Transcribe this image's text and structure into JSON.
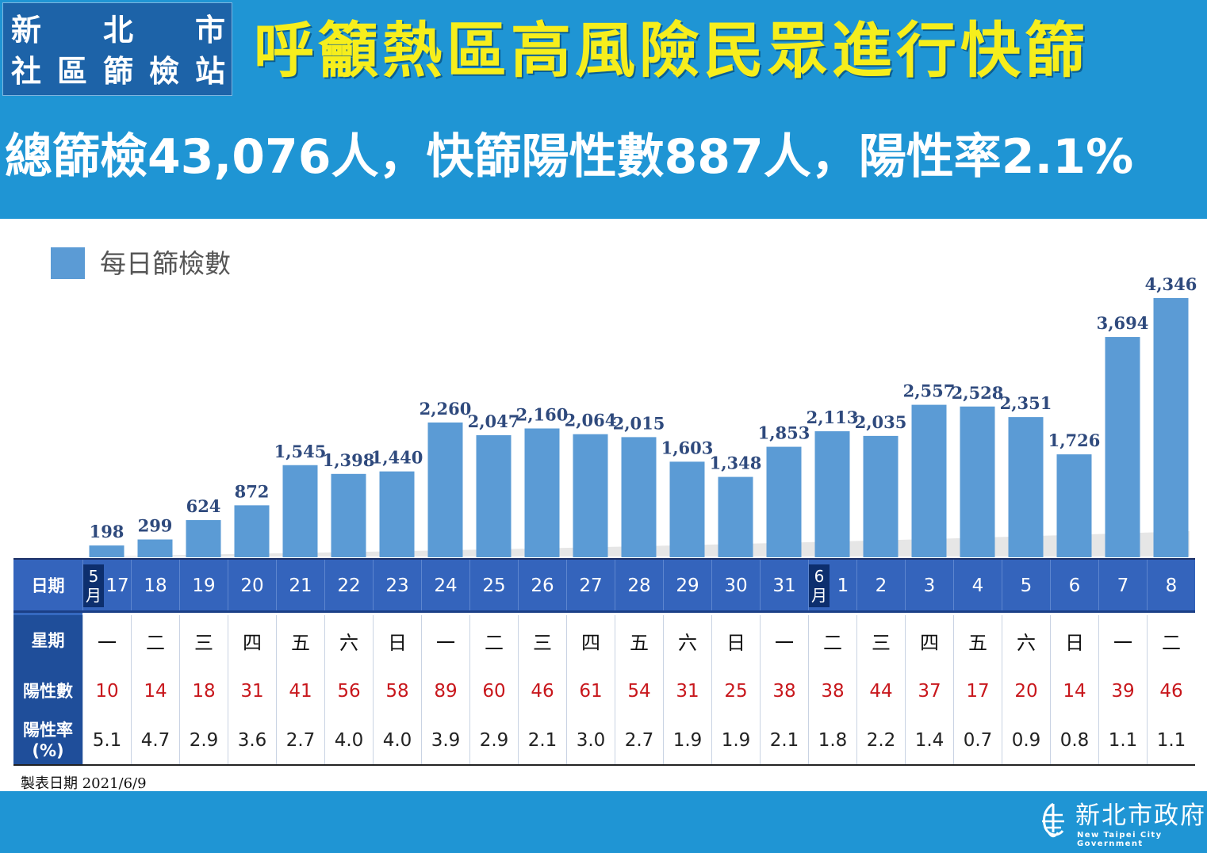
{
  "header": {
    "badge_line1": [
      "新",
      "北",
      "市"
    ],
    "badge_line2": [
      "社",
      "區",
      "篩",
      "檢",
      "站"
    ],
    "title": "呼籲熱區高風險民眾進行快篩",
    "summary": "總篩檢43,076人，快篩陽性數887人，陽性率2.1%"
  },
  "legend": {
    "label": "每日篩檢數",
    "color": "#5b9bd5"
  },
  "chart_data": {
    "type": "bar",
    "categories": [
      "5/17",
      "5/18",
      "5/19",
      "5/20",
      "5/21",
      "5/22",
      "5/23",
      "5/24",
      "5/25",
      "5/26",
      "5/27",
      "5/28",
      "5/29",
      "5/30",
      "5/31",
      "6/1",
      "6/2",
      "6/3",
      "6/4",
      "6/5",
      "6/6",
      "6/7",
      "6/8"
    ],
    "series": [
      {
        "name": "每日篩檢數",
        "values": [
          198,
          299,
          624,
          872,
          1545,
          1398,
          1440,
          2260,
          2047,
          2160,
          2064,
          2015,
          1603,
          1348,
          1853,
          2113,
          2035,
          2557,
          2528,
          2351,
          1726,
          3694,
          4346
        ],
        "labels": [
          "198",
          "299",
          "624",
          "872",
          "1,545",
          "1,398",
          "1,440",
          "2,260",
          "2,047",
          "2,160",
          "2,064",
          "2,015",
          "1,603",
          "1,348",
          "1,853",
          "2,113",
          "2,035",
          "2,557",
          "2,528",
          "2,351",
          "1,726",
          "3,694",
          "4,346"
        ]
      }
    ],
    "ylim": [
      0,
      4500
    ],
    "grid": false,
    "legend_position": "top-left",
    "bar_color": "#5b9bd5",
    "label_color": "#2f4a7d"
  },
  "table": {
    "headers": {
      "date": "日期",
      "weekday": "星期",
      "positives": "陽性數",
      "rate": "陽性率\n(%)"
    },
    "month_tags": [
      {
        "index": 0,
        "text": "5\n月"
      },
      {
        "index": 15,
        "text": "6\n月"
      }
    ],
    "days": [
      "17",
      "18",
      "19",
      "20",
      "21",
      "22",
      "23",
      "24",
      "25",
      "26",
      "27",
      "28",
      "29",
      "30",
      "31",
      "1",
      "2",
      "3",
      "4",
      "5",
      "6",
      "7",
      "8"
    ],
    "weekdays": [
      "一",
      "二",
      "三",
      "四",
      "五",
      "六",
      "日",
      "一",
      "二",
      "三",
      "四",
      "五",
      "六",
      "日",
      "一",
      "二",
      "三",
      "四",
      "五",
      "六",
      "日",
      "一",
      "二"
    ],
    "positives": [
      "10",
      "14",
      "18",
      "31",
      "41",
      "56",
      "58",
      "89",
      "60",
      "46",
      "61",
      "54",
      "31",
      "25",
      "38",
      "38",
      "44",
      "37",
      "17",
      "20",
      "14",
      "39",
      "46"
    ],
    "rates": [
      "5.1",
      "4.7",
      "2.9",
      "3.6",
      "2.7",
      "4.0",
      "4.0",
      "3.9",
      "2.9",
      "2.1",
      "3.0",
      "2.7",
      "1.9",
      "1.9",
      "2.1",
      "1.8",
      "2.2",
      "1.4",
      "0.7",
      "0.9",
      "0.8",
      "1.1",
      "1.1"
    ],
    "positive_color": "#c8171c",
    "date_row_color": "#3464bc"
  },
  "credit": "製表日期 2021/6/9",
  "footer": {
    "logo_zh": "新北市政府",
    "logo_en": "New Taipei City Government",
    "logo_icon": "new-taipei-city-logo-icon"
  }
}
